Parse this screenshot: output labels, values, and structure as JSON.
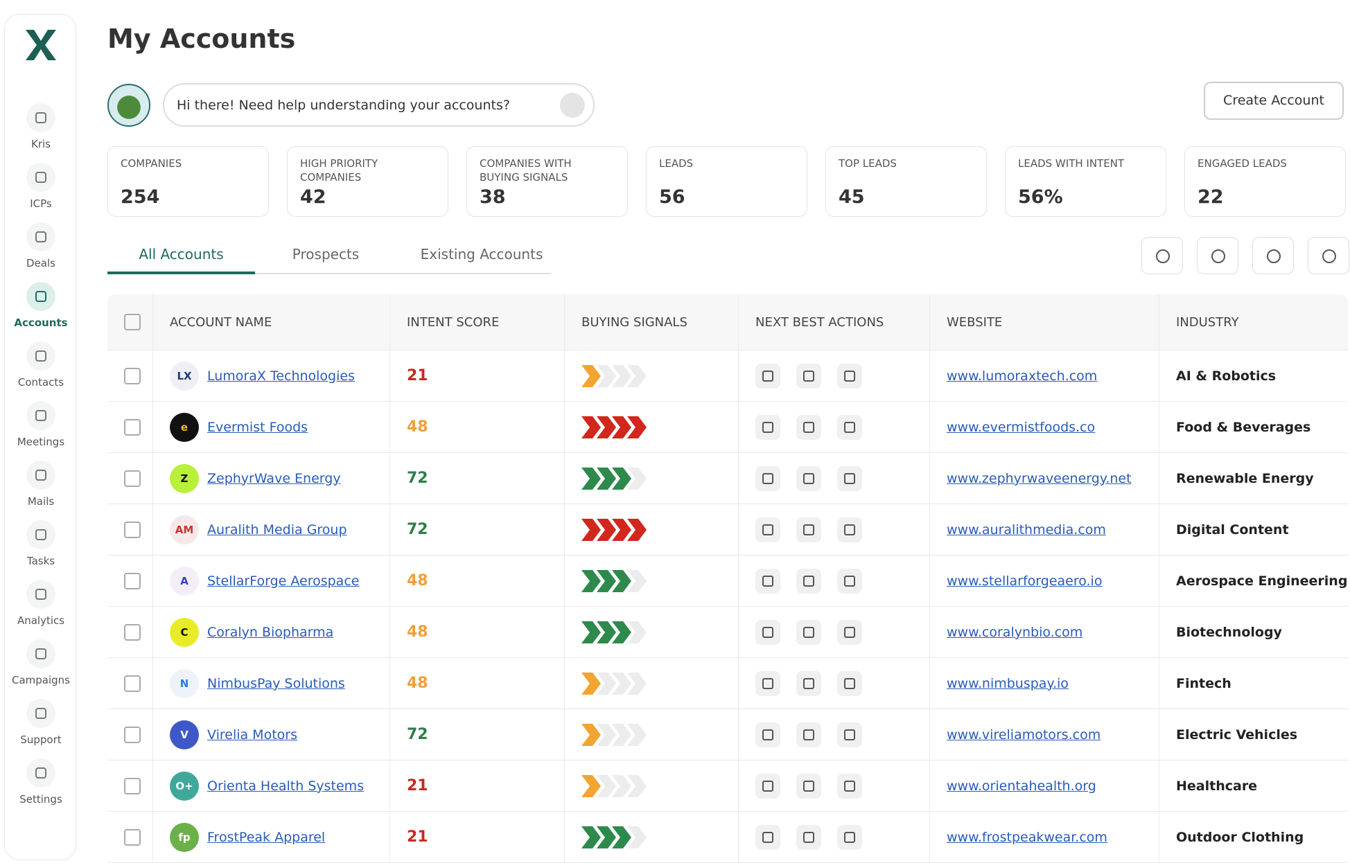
{
  "sidebar": {
    "items": [
      "Kris",
      "ICPs",
      "Deals",
      "Accounts",
      "Contacts",
      "Meetings",
      "Mails",
      "Tasks",
      "Analytics",
      "Campaigns",
      "Support",
      "Settings"
    ],
    "active": 3
  },
  "header": {
    "title": "My Accounts"
  },
  "chat": {
    "placeholder": "Hi there! Need help understanding your accounts?"
  },
  "create_button": "Create Account",
  "stats": [
    {
      "label": "COMPANIES",
      "value": "254"
    },
    {
      "label": "HIGH PRIORITY COMPANIES",
      "value": "42"
    },
    {
      "label": "COMPANIES WITH BUYING SIGNALS",
      "value": "38"
    },
    {
      "label": "LEADS",
      "value": "56"
    },
    {
      "label": "TOP LEADS",
      "value": "45"
    },
    {
      "label": "LEADS WITH INTENT",
      "value": "56%"
    },
    {
      "label": "ENGAGED LEADS",
      "value": "22"
    }
  ],
  "tabs": {
    "items": [
      "All Accounts",
      "Prospects",
      "Existing Accounts"
    ],
    "active": 0
  },
  "table": {
    "headers": [
      "ACCOUNT NAME",
      "INTENT SCORE",
      "BUYING SIGNALS",
      "NEXT BEST ACTIONS",
      "WEBSITE",
      "INDUSTRY"
    ],
    "rows": [
      {
        "name": "LumoraX Technologies",
        "logo": "LX",
        "intent_score": 21,
        "score_color": "#c8291e",
        "signal_level": 1,
        "signal_color": "#f2a531",
        "website": "www.lumoraxtech.com",
        "industry": "AI & Robotics"
      },
      {
        "name": "Evermist Foods",
        "logo": "e",
        "intent_score": 48,
        "score_color": "#f0a03a",
        "signal_level": 4,
        "signal_color": "#d1271d",
        "website": "www.evermistfoods.co",
        "industry": "Food & Beverages"
      },
      {
        "name": "ZephyrWave Energy",
        "logo": "Z",
        "intent_score": 72,
        "score_color": "#2f7d4a",
        "signal_level": 3,
        "signal_color": "#2e8a4c",
        "website": "www.zephyrwaveenergy.net",
        "industry": "Renewable Energy"
      },
      {
        "name": "Auralith Media Group",
        "logo": "AM",
        "intent_score": 72,
        "score_color": "#2f7d4a",
        "signal_level": 4,
        "signal_color": "#d1271d",
        "website": "www.auralithmedia.com",
        "industry": "Digital Content"
      },
      {
        "name": "StellarForge Aerospace",
        "logo": "A",
        "intent_score": 48,
        "score_color": "#f0a03a",
        "signal_level": 3,
        "signal_color": "#2e8a4c",
        "website": "www.stellarforgeaero.io",
        "industry": "Aerospace Engineering"
      },
      {
        "name": "Coralyn Biopharma",
        "logo": "C",
        "intent_score": 48,
        "score_color": "#f0a03a",
        "signal_level": 3,
        "signal_color": "#2e8a4c",
        "website": "www.coralynbio.com",
        "industry": "Biotechnology"
      },
      {
        "name": "NimbusPay Solutions",
        "logo": "N",
        "intent_score": 48,
        "score_color": "#f0a03a",
        "signal_level": 1,
        "signal_color": "#f2a531",
        "website": "www.nimbuspay.io",
        "industry": "Fintech"
      },
      {
        "name": "Virelia Motors",
        "logo": "V",
        "intent_score": 72,
        "score_color": "#2f7d4a",
        "signal_level": 1,
        "signal_color": "#f2a531",
        "website": "www.vireliamotors.com",
        "industry": "Electric Vehicles"
      },
      {
        "name": "Orienta Health Systems",
        "logo": "O+",
        "intent_score": 21,
        "score_color": "#c8291e",
        "signal_level": 1,
        "signal_color": "#f2a531",
        "website": "www.orientahealth.org",
        "industry": "Healthcare"
      },
      {
        "name": "FrostPeak Apparel",
        "logo": "fp",
        "intent_score": 21,
        "score_color": "#c8291e",
        "signal_level": 3,
        "signal_color": "#2e8a4c",
        "website": "www.frostpeakwear.com",
        "industry": "Outdoor Clothing"
      }
    ]
  }
}
